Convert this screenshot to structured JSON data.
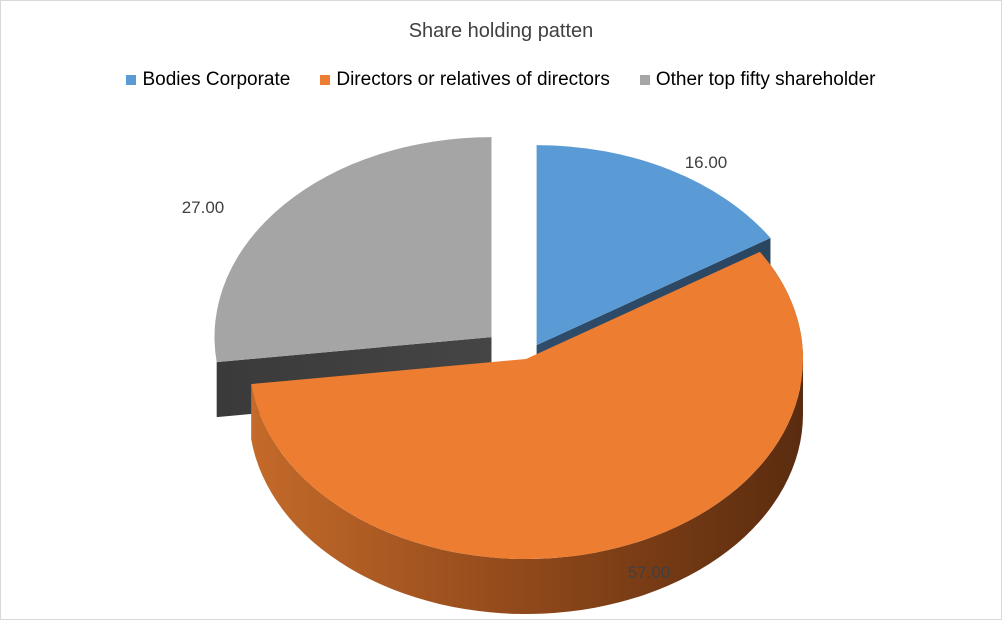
{
  "chart_data": {
    "type": "pie",
    "title": "Share holding patten",
    "categories": [
      "Bodies Corporate",
      "Directors or relatives of directors",
      "Other top fifty shareholder"
    ],
    "values": [
      16.0,
      57.0,
      27.0
    ],
    "data_labels": [
      "16.00",
      "57.00",
      "27.00"
    ],
    "colors": [
      "#5b9bd5",
      "#ed7d31",
      "#a5a5a5"
    ],
    "side_colors": [
      "#2e4d6b",
      "#6b3413",
      "#3f3f3f"
    ],
    "exploded": true,
    "style": "3d",
    "legend_position": "top"
  }
}
